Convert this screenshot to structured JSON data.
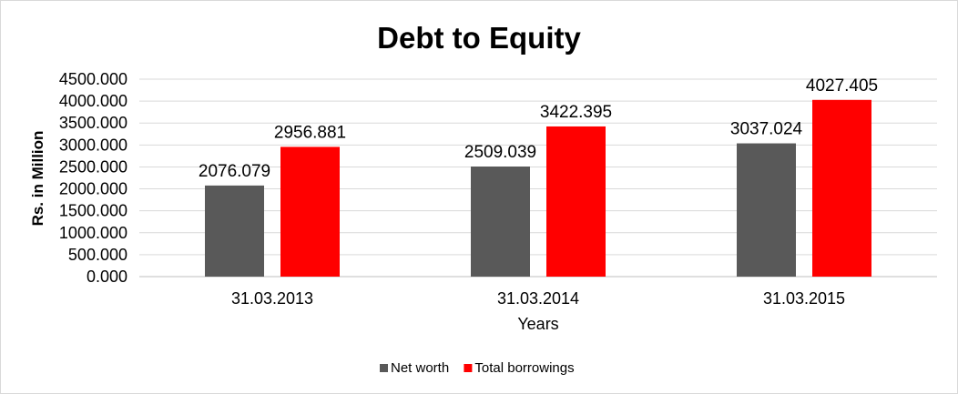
{
  "chart_data": {
    "type": "bar",
    "title": "Debt to Equity",
    "xlabel": "Years",
    "ylabel": "Rs. in Million",
    "categories": [
      "31.03.2013",
      "31.03.2014",
      "31.03.2015"
    ],
    "series": [
      {
        "name": "Net worth",
        "color": "#595959",
        "values": [
          2076.079,
          2509.039,
          3037.024
        ]
      },
      {
        "name": "Total borrowings",
        "color": "#ff0000",
        "values": [
          2956.881,
          3422.395,
          4027.405
        ]
      }
    ],
    "ylim": [
      0,
      4500
    ],
    "yticks": [
      "0.000",
      "500.000",
      "1000.000",
      "1500.000",
      "2000.000",
      "2500.000",
      "3000.000",
      "3500.000",
      "4000.000",
      "4500.000"
    ],
    "data_labels": [
      [
        "2076.079",
        "2509.039",
        "3037.024"
      ],
      [
        "2956.881",
        "3422.395",
        "4027.405"
      ]
    ],
    "grid": true,
    "legend_position": "bottom"
  }
}
